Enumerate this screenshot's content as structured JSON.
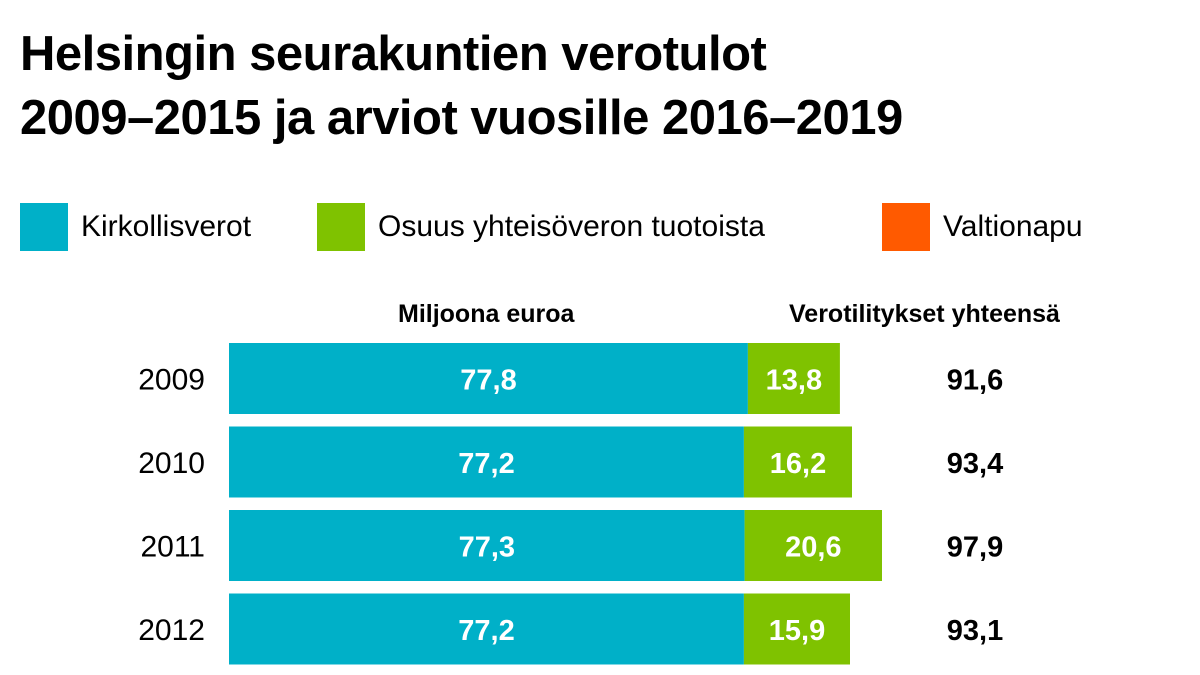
{
  "chart_data": {
    "type": "bar",
    "orientation": "horizontal",
    "stacked": true,
    "title_lines": [
      "Helsingin seurakuntien verotulot",
      "2009–2015 ja arviot vuosille 2016–2019"
    ],
    "xlabel": "Miljoona euroa",
    "totals_label": "Verotilitykset yhteensä",
    "categories": [
      "2009",
      "2010",
      "2011",
      "2012"
    ],
    "series": [
      {
        "name": "Kirkollisverot",
        "color": "#00b0c8",
        "values": [
          77.8,
          77.2,
          77.3,
          77.2
        ],
        "labels": [
          "77,8",
          "77,2",
          "77,3",
          "77,2"
        ]
      },
      {
        "name": "Osuus yhteisöveron tuotoista",
        "color": "#7fc200",
        "values": [
          13.8,
          16.2,
          20.6,
          15.9
        ],
        "labels": [
          "13,8",
          "16,2",
          "20,6",
          "15,9"
        ]
      },
      {
        "name": "Valtionapu",
        "color": "#ff5a00",
        "values": [
          0,
          0,
          0,
          0
        ],
        "labels": [
          "",
          "",
          "",
          ""
        ]
      }
    ],
    "totals": [
      "91,6",
      "93,4",
      "97,9",
      "93,1"
    ],
    "legend_position": "top",
    "grid": false,
    "xlim": [
      0,
      100
    ]
  }
}
